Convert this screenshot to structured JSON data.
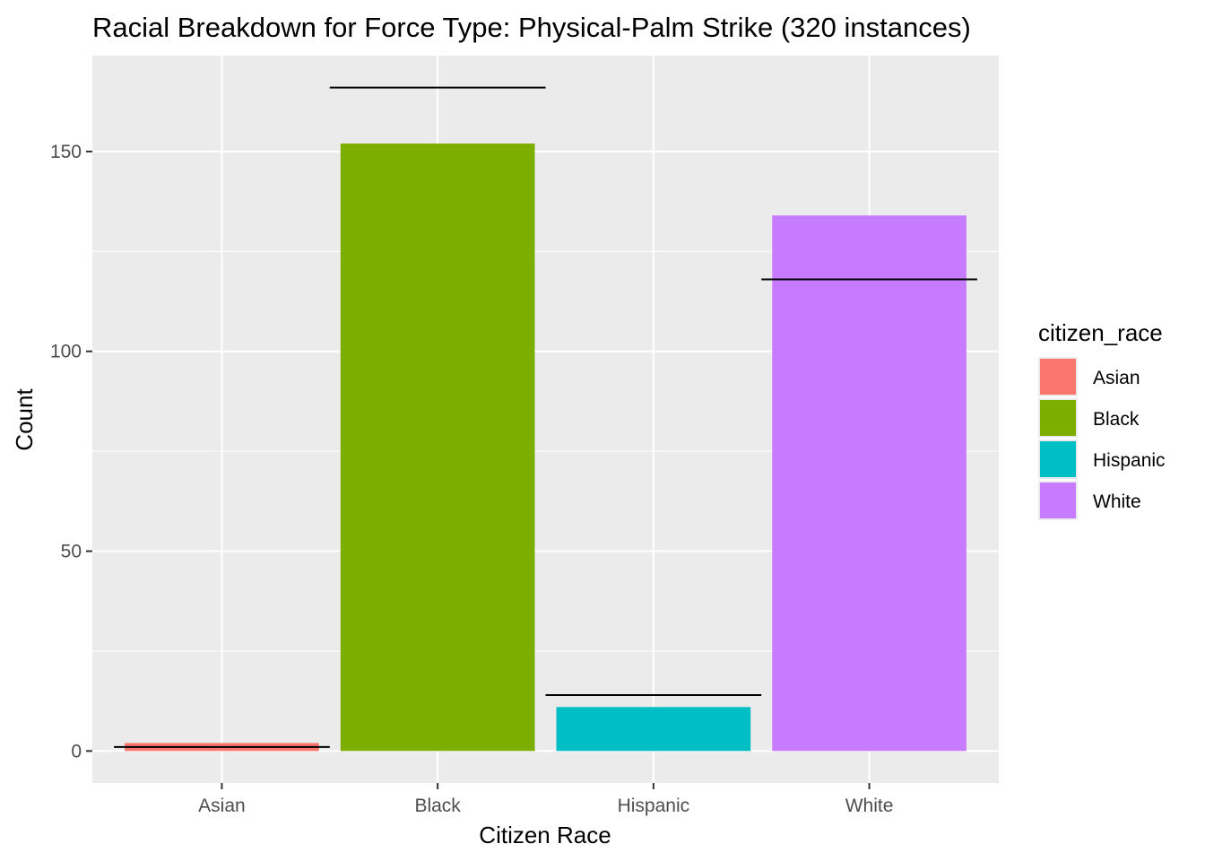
{
  "chart_data": {
    "type": "bar",
    "title": "Racial Breakdown for Force Type: Physical-Palm Strike (320 instances)",
    "xlabel": "Citizen Race",
    "ylabel": "Count",
    "categories": [
      "Asian",
      "Black",
      "Hispanic",
      "White"
    ],
    "values": [
      2,
      152,
      11,
      134
    ],
    "reference_lines": [
      1,
      166,
      14,
      118
    ],
    "colors": [
      "#F8766D",
      "#7CAE00",
      "#00BFC4",
      "#C77CFF"
    ],
    "ylim": [
      -8,
      174
    ],
    "yticks": [
      0,
      50,
      100,
      150
    ],
    "grid": true,
    "panel_background": "#EBEBEB",
    "legend": {
      "title": "citizen_race",
      "position": "right",
      "items": [
        "Asian",
        "Black",
        "Hispanic",
        "White"
      ]
    }
  }
}
